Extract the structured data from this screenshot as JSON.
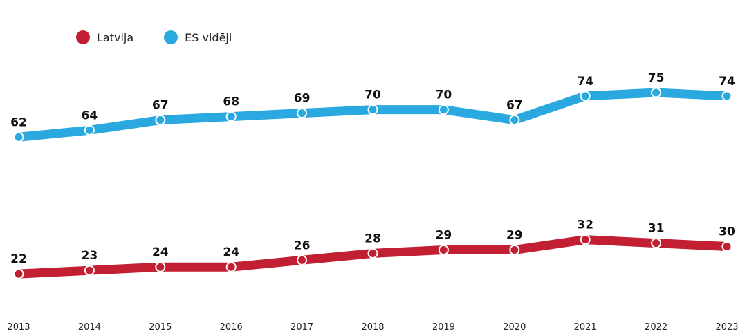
{
  "chart_data": {
    "type": "line",
    "title": "",
    "xlabel": "",
    "ylabel": "",
    "x": [
      "2013",
      "2014",
      "2015",
      "2016",
      "2017",
      "2018",
      "2019",
      "2020",
      "2021",
      "2022",
      "2023"
    ],
    "series": [
      {
        "name": "Latvija",
        "color": "#c21f32",
        "values": [
          22,
          23,
          24,
          24,
          26,
          28,
          29,
          29,
          32,
          31,
          30
        ]
      },
      {
        "name": "ES vidēji",
        "color": "#2aa9e0",
        "values": [
          62,
          64,
          67,
          68,
          69,
          70,
          70,
          67,
          74,
          75,
          74
        ]
      }
    ],
    "ylim": [
      20,
      76
    ],
    "grid": false,
    "legend_position": "top-left"
  }
}
